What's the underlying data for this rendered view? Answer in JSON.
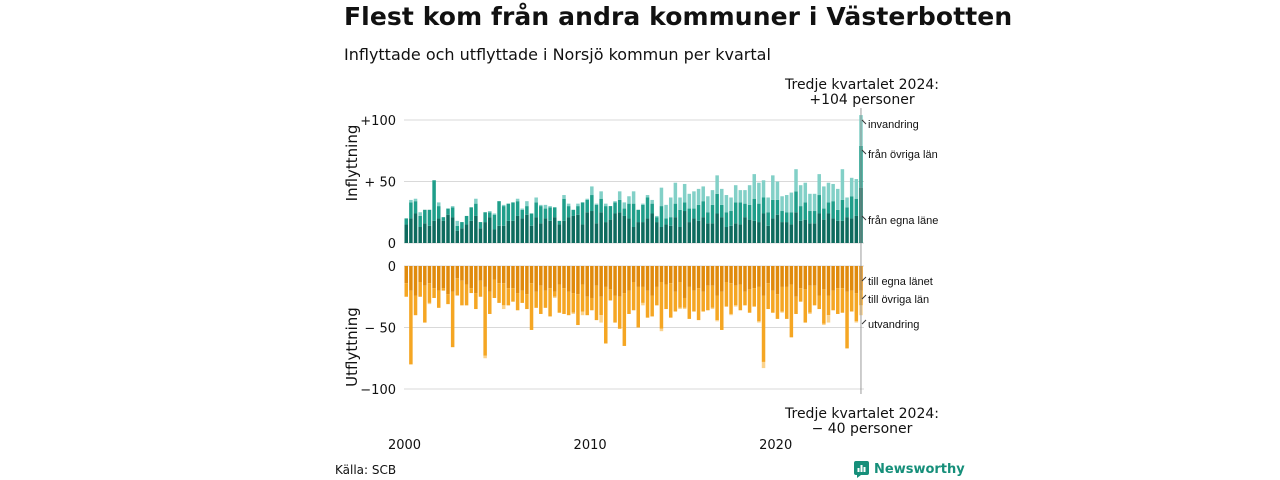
{
  "header": {
    "title": "Flest kom från andra kommuner i Västerbotten",
    "subtitle": "Inflyttade och utflyttade i Norsjö kommun per kvartal"
  },
  "footer": {
    "source": "Källa: SCB",
    "brand": "Newsworthy"
  },
  "colors": {
    "in_own": "#0e6b5e",
    "in_other": "#1f9e8a",
    "in_imm": "#82d0c7",
    "out_own": "#e08a0c",
    "out_other": "#f5a623",
    "out_emi": "#fbd38d",
    "grid": "#d9d9d9",
    "icon": "#168f7a"
  },
  "chart_data": {
    "type": "bar",
    "title": "Inflyttade och utflyttade i Norsjö kommun per kvartal",
    "x_start": "2000 Q1",
    "x_end": "2024 Q3",
    "x_ticks": [
      "2000",
      "2010",
      "2020"
    ],
    "inflow": {
      "ylabel": "Inflyttning",
      "ylim": [
        0,
        100
      ],
      "y_ticks": [
        "0",
        "+ 50",
        "+100"
      ],
      "series": [
        {
          "name": "från egna läne",
          "values": [
            15,
            20,
            24,
            13,
            16,
            14,
            18,
            20,
            18,
            23,
            21,
            10,
            12,
            15,
            18,
            22,
            12,
            17,
            21,
            11,
            14,
            14,
            18,
            18,
            22,
            20,
            23,
            14,
            21,
            16,
            20,
            18,
            21,
            15,
            18,
            21,
            22,
            23,
            15,
            25,
            26,
            16,
            25,
            17,
            19,
            24,
            25,
            22,
            20,
            13,
            17,
            17,
            20,
            24,
            17,
            13,
            15,
            14,
            21,
            13,
            26,
            17,
            20,
            18,
            21,
            16,
            16,
            24,
            21,
            13,
            14,
            16,
            15,
            21,
            19,
            18,
            17,
            24,
            14,
            20,
            23,
            17,
            17,
            15,
            25,
            18,
            19,
            16,
            16,
            24,
            19,
            24,
            20,
            18,
            18,
            21,
            20,
            22,
            45
          ]
        },
        {
          "name": "från övriga län",
          "values": [
            5,
            13,
            10,
            9,
            11,
            13,
            33,
            10,
            3,
            5,
            8,
            4,
            5,
            7,
            11,
            10,
            5,
            8,
            4,
            12,
            20,
            16,
            14,
            15,
            12,
            7,
            7,
            10,
            12,
            14,
            8,
            11,
            8,
            3,
            18,
            9,
            5,
            7,
            18,
            10,
            13,
            15,
            11,
            13,
            11,
            9,
            10,
            6,
            12,
            19,
            10,
            14,
            17,
            8,
            4,
            17,
            5,
            7,
            11,
            14,
            7,
            11,
            8,
            13,
            13,
            9,
            15,
            16,
            10,
            12,
            12,
            17,
            18,
            11,
            12,
            18,
            15,
            13,
            11,
            15,
            12,
            9,
            8,
            10,
            17,
            12,
            14,
            10,
            10,
            15,
            9,
            9,
            14,
            9,
            17,
            8,
            18,
            14,
            34
          ]
        },
        {
          "name": "invandring",
          "values": [
            0,
            2,
            2,
            3,
            0,
            0,
            0,
            3,
            0,
            0,
            1,
            4,
            0,
            0,
            0,
            4,
            0,
            0,
            1,
            1,
            0,
            1,
            0,
            0,
            2,
            1,
            4,
            0,
            4,
            1,
            3,
            1,
            0,
            0,
            3,
            2,
            0,
            2,
            0,
            1,
            7,
            1,
            6,
            2,
            0,
            1,
            7,
            5,
            6,
            10,
            0,
            1,
            2,
            3,
            1,
            15,
            11,
            16,
            17,
            10,
            15,
            12,
            14,
            13,
            12,
            13,
            12,
            15,
            13,
            14,
            11,
            14,
            10,
            11,
            16,
            20,
            17,
            14,
            12,
            20,
            15,
            12,
            14,
            16,
            18,
            17,
            16,
            14,
            14,
            17,
            18,
            16,
            14,
            17,
            25,
            8,
            15,
            16,
            25
          ]
        }
      ]
    },
    "outflow": {
      "ylabel": "Utflyttning",
      "ylim": [
        -100,
        0
      ],
      "y_ticks": [
        "0",
        "− 50",
        "−100"
      ],
      "series": [
        {
          "name": "till egna länet",
          "values": [
            -14,
            -20,
            -24,
            -13,
            -16,
            -14,
            -18,
            -20,
            -18,
            -23,
            -21,
            -10,
            -12,
            -15,
            -18,
            -22,
            -12,
            -17,
            -21,
            -11,
            -14,
            -14,
            -18,
            -18,
            -22,
            -20,
            -23,
            -14,
            -21,
            -16,
            -20,
            -18,
            -21,
            -15,
            -18,
            -21,
            -22,
            -23,
            -15,
            -25,
            -26,
            -16,
            -25,
            -17,
            -19,
            -24,
            -25,
            -22,
            -20,
            -13,
            -17,
            -17,
            -20,
            -24,
            -17,
            -13,
            -15,
            -14,
            -21,
            -13,
            -26,
            -17,
            -20,
            -18,
            -21,
            -16,
            -16,
            -24,
            -21,
            -13,
            -14,
            -16,
            -15,
            -21,
            -19,
            -18,
            -17,
            -24,
            -14,
            -20,
            -23,
            -17,
            -17,
            -15,
            -25,
            -18,
            -19,
            -16,
            -16,
            -24,
            -19,
            -24,
            -20,
            -18,
            -18,
            -21,
            -20,
            -22,
            -20
          ]
        },
        {
          "name": "till övriga län",
          "values": [
            -11,
            -60,
            -16,
            -12,
            -30,
            -16,
            -8,
            -14,
            -2,
            -8,
            -45,
            -14,
            -20,
            -17,
            -4,
            -13,
            -13,
            -56,
            -18,
            -15,
            -16,
            -18,
            -14,
            -11,
            -14,
            -10,
            -12,
            -38,
            -13,
            -23,
            -14,
            -23,
            -4,
            -23,
            -21,
            -19,
            -16,
            -25,
            -22,
            -15,
            -10,
            -28,
            -15,
            -46,
            -9,
            -22,
            -26,
            -43,
            -19,
            -23,
            -33,
            -13,
            -22,
            -17,
            -15,
            -38,
            -20,
            -28,
            -16,
            -21,
            -8,
            -26,
            -17,
            -26,
            -16,
            -20,
            -18,
            -20,
            -31,
            -20,
            -25,
            -16,
            -21,
            -11,
            -19,
            -15,
            -28,
            -54,
            -21,
            -18,
            -20,
            -20,
            -26,
            -43,
            -14,
            -11,
            -27,
            -22,
            -16,
            -11,
            -28,
            -16,
            -16,
            -21,
            -20,
            -46,
            -17,
            -23,
            -12
          ]
        },
        {
          "name": "utvandring",
          "values": [
            0,
            0,
            0,
            0,
            0,
            -1,
            0,
            0,
            0,
            0,
            0,
            0,
            0,
            0,
            0,
            0,
            0,
            -2,
            0,
            0,
            0,
            -3,
            0,
            0,
            0,
            0,
            0,
            0,
            0,
            0,
            0,
            0,
            -1,
            0,
            0,
            0,
            -1,
            0,
            -3,
            0,
            0,
            0,
            -6,
            0,
            0,
            0,
            0,
            0,
            0,
            0,
            0,
            -2,
            0,
            0,
            0,
            -2,
            0,
            0,
            0,
            -1,
            -1,
            0,
            0,
            0,
            0,
            0,
            -1,
            -1,
            0,
            0,
            -1,
            -1,
            0,
            0,
            0,
            0,
            -1,
            -5,
            0,
            0,
            0,
            -1,
            0,
            0,
            0,
            0,
            0,
            -1,
            0,
            0,
            -1,
            -6,
            0,
            0,
            0,
            0,
            0,
            -1,
            -8
          ]
        }
      ]
    },
    "annotations": {
      "top": [
        "Tredje kvartalet 2024:",
        "+104 personer"
      ],
      "bottom": [
        "Tredje kvartalet 2024:",
        "− 40 personer"
      ]
    }
  }
}
